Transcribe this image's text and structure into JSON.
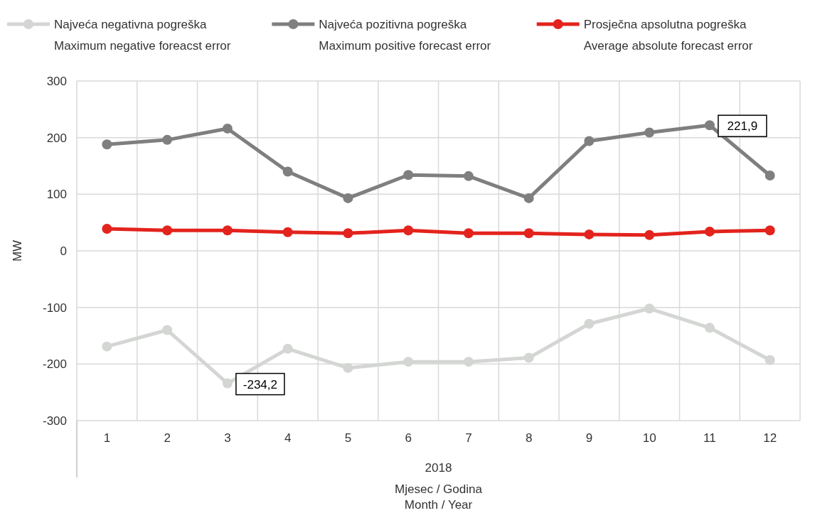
{
  "chart_data": {
    "type": "line",
    "ylabel": "MW",
    "xlabel": "Mjesec / Godina\nMonth / Year",
    "annotations": [
      "2018"
    ],
    "categories": [
      "1",
      "2",
      "3",
      "4",
      "5",
      "6",
      "7",
      "8",
      "9",
      "10",
      "11",
      "12"
    ],
    "ylim": [
      -300,
      300
    ],
    "yticks": [
      -300,
      -200,
      -100,
      0,
      100,
      200,
      300
    ],
    "grid": true,
    "legend": "top",
    "marker": "circle",
    "line_style": "solid",
    "series": [
      {
        "name": "Najveća negativna pogreška\nMaximum negative foreacst error",
        "color": "#d3d6d3",
        "values": [
          -169,
          -140,
          -234.2,
          -173,
          -207,
          -196,
          -196,
          -189,
          -129,
          -102,
          -136,
          -193
        ],
        "value_labels": [
          null,
          null,
          "-234,2",
          null,
          null,
          null,
          null,
          null,
          null,
          null,
          null,
          null
        ]
      },
      {
        "name": "Najveća pozitivna pogreška\nMaximum positive forecast error",
        "color": "#7f7f7f",
        "values": [
          188,
          196,
          216,
          140,
          93,
          134,
          132,
          93,
          194,
          209,
          221.9,
          133
        ],
        "value_labels": [
          null,
          null,
          null,
          null,
          null,
          null,
          null,
          null,
          null,
          null,
          "221,9",
          null
        ]
      },
      {
        "name": "Prosječna apsolutna pogreška\nAverage absolute forecast error",
        "color": "#e3231d",
        "values": [
          39,
          36,
          36,
          33,
          31,
          36,
          31,
          31,
          29,
          28,
          34,
          36
        ]
      }
    ]
  }
}
